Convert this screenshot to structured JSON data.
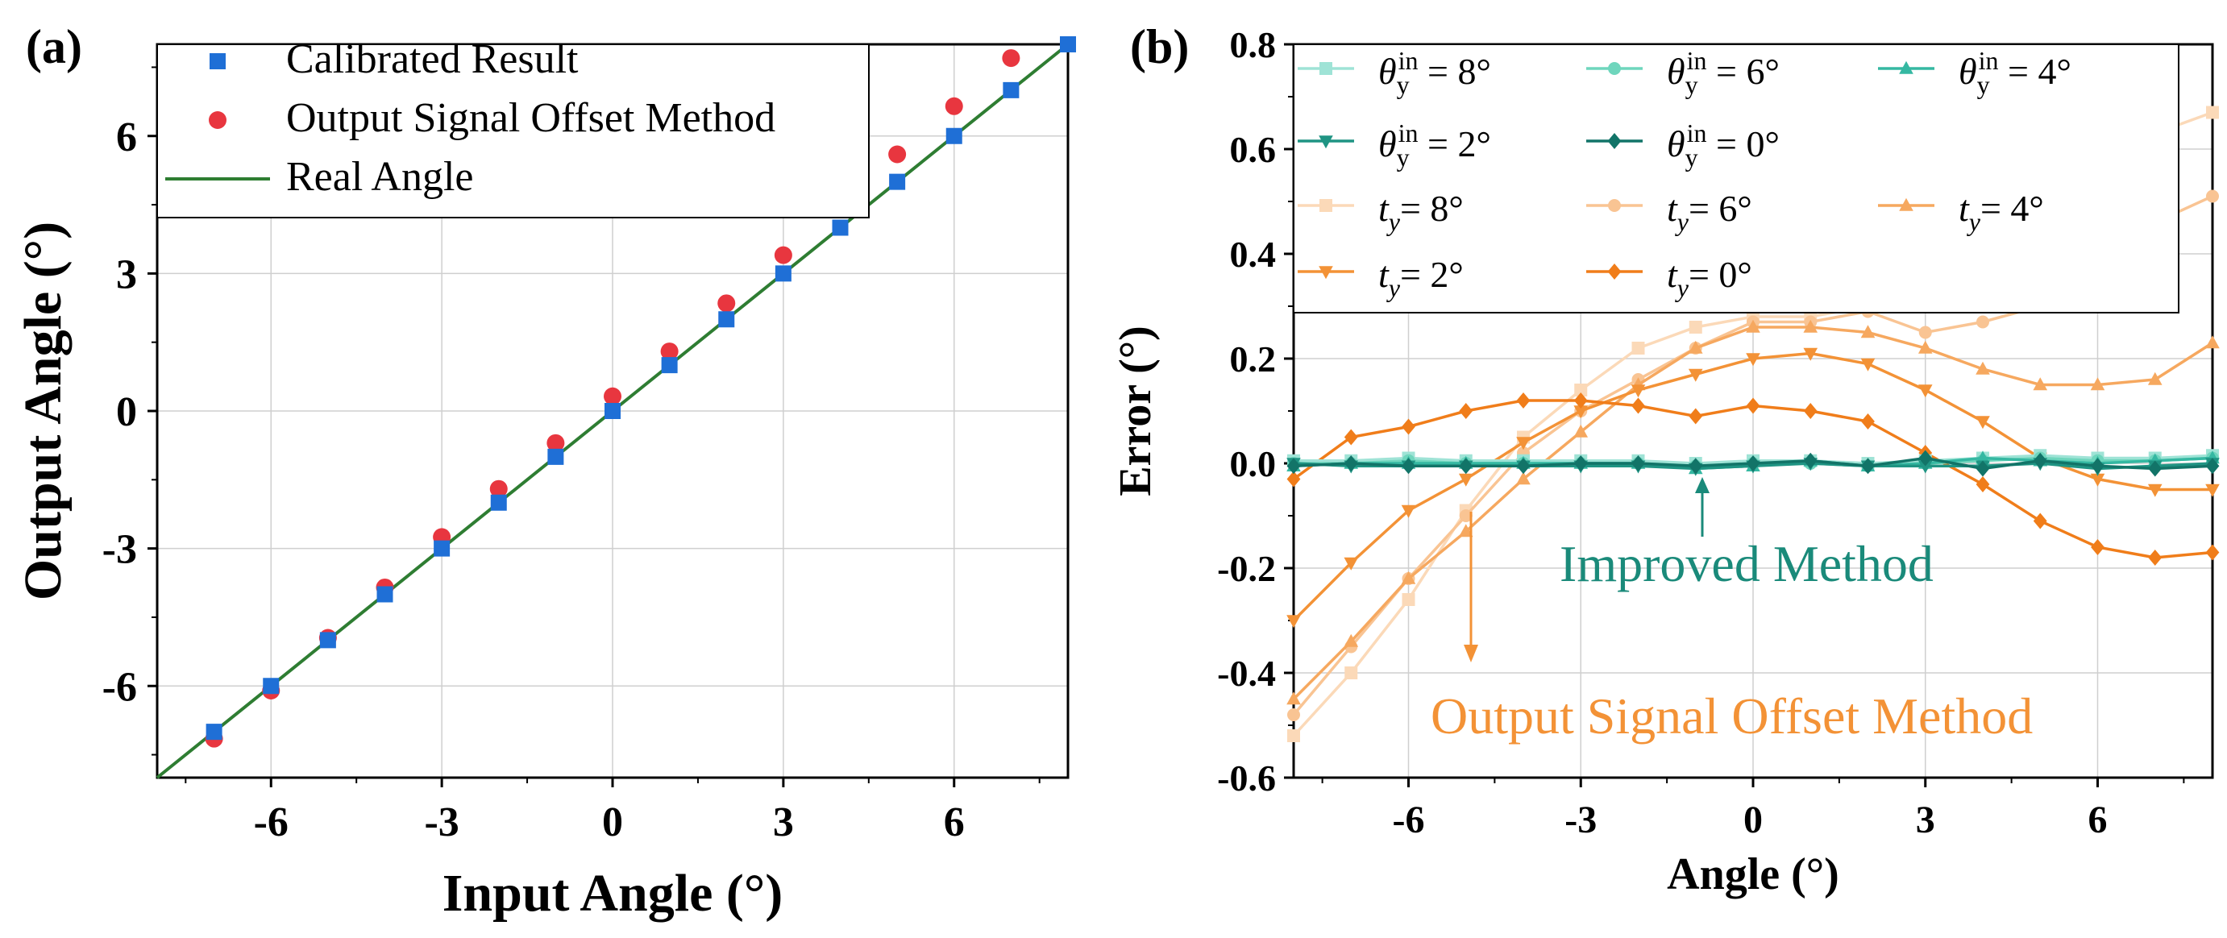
{
  "figure": {
    "panel_a_label": "(a)",
    "panel_b_label": "(b)"
  },
  "chart_data": [
    {
      "type": "scatter",
      "panel": "(a)",
      "xlabel": "Input Angle (°)",
      "ylabel": "Output Angle (°)",
      "xlim": [
        -8,
        8
      ],
      "ylim": [
        -8,
        8
      ],
      "xticks": [
        -6,
        -3,
        0,
        3,
        6
      ],
      "yticks": [
        -6,
        -3,
        0,
        3,
        6
      ],
      "grid": true,
      "legend_position": "top-left",
      "series": [
        {
          "name": "Calibrated Result",
          "marker": "square",
          "color": "#1f6fd6",
          "x": [
            -7,
            -6,
            -5,
            -4,
            -3,
            -2,
            -1,
            0,
            1,
            2,
            3,
            4,
            5,
            6,
            7,
            8
          ],
          "y": [
            -7,
            -6,
            -5,
            -4,
            -3,
            -2,
            -1,
            0,
            1,
            2,
            3,
            4,
            5,
            6,
            7,
            8
          ]
        },
        {
          "name": "Output Signal Offset Method",
          "marker": "circle",
          "color": "#e8363f",
          "x": [
            -7,
            -6,
            -5,
            -4,
            -3,
            -2,
            -1,
            0,
            1,
            2,
            3,
            4,
            5,
            6,
            7
          ],
          "y": [
            -7.15,
            -6.1,
            -4.95,
            -3.85,
            -2.75,
            -1.7,
            -0.7,
            0.32,
            1.3,
            2.35,
            3.4,
            4.5,
            5.6,
            6.65,
            7.7
          ]
        },
        {
          "name": "Real Angle",
          "marker": "line",
          "color": "#2e7d32",
          "x": [
            -8,
            8
          ],
          "y": [
            -8,
            8
          ]
        }
      ]
    },
    {
      "type": "line",
      "panel": "(b)",
      "xlabel": "Angle (°)",
      "ylabel": "Error (°)",
      "xlim": [
        -8,
        8
      ],
      "ylim": [
        -0.6,
        0.8
      ],
      "xticks": [
        -6,
        -3,
        0,
        3,
        6
      ],
      "yticks": [
        "-0.6",
        "-0.4",
        "-0.2",
        "0.0",
        "0.2",
        "0.4",
        "0.6",
        "0.8"
      ],
      "grid": true,
      "legend_position": "top-left",
      "x": [
        -8,
        -7,
        -6,
        -5,
        -4,
        -3,
        -2,
        -1,
        0,
        1,
        2,
        3,
        4,
        5,
        6,
        7,
        8
      ],
      "series": [
        {
          "name": "θy in = 8°",
          "prefix": "θ",
          "sub": "y",
          "sup": "in",
          "eq": " = 8°",
          "marker": "square",
          "color": "#9fe3d6",
          "values": [
            0.005,
            0.005,
            0.01,
            0.005,
            0.005,
            0.005,
            0.005,
            0.0,
            0.005,
            0.005,
            0.0,
            0.005,
            0.01,
            0.015,
            0.01,
            0.01,
            0.015
          ]
        },
        {
          "name": "θy in = 6°",
          "prefix": "θ",
          "sub": "y",
          "sup": "in",
          "eq": " = 6°",
          "marker": "circle",
          "color": "#6fd6bd",
          "values": [
            0.0,
            0.0,
            0.005,
            0.0,
            0.0,
            0.0,
            0.0,
            -0.005,
            0.0,
            0.0,
            -0.005,
            0.0,
            0.005,
            0.01,
            0.005,
            0.005,
            0.01
          ]
        },
        {
          "name": "θy in = 4°",
          "prefix": "θ",
          "sub": "y",
          "sup": "in",
          "eq": " = 4°",
          "marker": "triangle-up",
          "color": "#35b8a2",
          "values": [
            -0.005,
            0.0,
            0.0,
            0.0,
            0.0,
            0.0,
            0.0,
            -0.01,
            -0.005,
            0.005,
            -0.005,
            0.0,
            0.01,
            0.005,
            0.0,
            0.005,
            0.01
          ]
        },
        {
          "name": "θy in = 2°",
          "prefix": "θ",
          "sub": "y",
          "sup": "in",
          "eq": " = 2°",
          "marker": "triangle-down",
          "color": "#1f9483",
          "values": [
            0.0,
            -0.005,
            -0.005,
            -0.005,
            -0.005,
            -0.005,
            -0.005,
            -0.01,
            -0.005,
            0.0,
            -0.005,
            -0.005,
            -0.005,
            0.0,
            -0.01,
            -0.005,
            0.0
          ]
        },
        {
          "name": "θy in = 0°",
          "prefix": "θ",
          "sub": "y",
          "sup": "in",
          "eq": " = 0°",
          "marker": "diamond",
          "color": "#127468",
          "values": [
            -0.005,
            0.0,
            -0.005,
            -0.005,
            -0.005,
            0.0,
            0.0,
            -0.005,
            0.0,
            0.005,
            -0.005,
            0.01,
            -0.01,
            0.005,
            -0.005,
            -0.01,
            -0.005
          ]
        },
        {
          "name": "ty = 8°",
          "prefix": "t",
          "sub": "y",
          "sup": "",
          "eq": "= 8°",
          "marker": "square",
          "color": "#fbd9b8",
          "values": [
            -0.52,
            -0.4,
            -0.26,
            -0.09,
            0.05,
            0.14,
            0.22,
            0.26,
            0.28,
            0.28,
            0.3,
            0.33,
            0.39,
            0.46,
            0.56,
            0.63,
            0.67
          ]
        },
        {
          "name": "ty = 6°",
          "prefix": "t",
          "sub": "y",
          "sup": "",
          "eq": "= 6°",
          "marker": "circle",
          "color": "#f9c493",
          "values": [
            -0.48,
            -0.35,
            -0.22,
            -0.1,
            0.02,
            0.1,
            0.16,
            0.22,
            0.27,
            0.27,
            0.29,
            0.25,
            0.27,
            0.3,
            0.39,
            0.46,
            0.51
          ]
        },
        {
          "name": "ty = 4°",
          "prefix": "t",
          "sub": "y",
          "sup": "",
          "eq": "= 4°",
          "marker": "triangle-up",
          "color": "#f6a85f",
          "values": [
            -0.45,
            -0.34,
            -0.22,
            -0.13,
            -0.03,
            0.06,
            0.15,
            0.22,
            0.26,
            0.26,
            0.25,
            0.22,
            0.18,
            0.15,
            0.15,
            0.16,
            0.23
          ]
        },
        {
          "name": "ty = 2°",
          "prefix": "t",
          "sub": "y",
          "sup": "",
          "eq": "= 2°",
          "marker": "triangle-down",
          "color": "#f39236",
          "values": [
            -0.3,
            -0.19,
            -0.09,
            -0.03,
            0.04,
            0.1,
            0.14,
            0.17,
            0.2,
            0.21,
            0.19,
            0.14,
            0.08,
            0.01,
            -0.03,
            -0.05,
            -0.05
          ]
        },
        {
          "name": "ty = 0°",
          "prefix": "t",
          "sub": "y",
          "sup": "",
          "eq": "= 0°",
          "marker": "diamond",
          "color": "#f07d1a",
          "values": [
            -0.03,
            0.05,
            0.07,
            0.1,
            0.12,
            0.12,
            0.11,
            0.09,
            0.11,
            0.1,
            0.08,
            0.02,
            -0.04,
            -0.11,
            -0.16,
            -0.18,
            -0.17
          ]
        }
      ],
      "annotations": [
        {
          "text": "Improved Method",
          "color": "#1a8a7a"
        },
        {
          "text": "Output Signal Offset Method",
          "color": "#f39236"
        }
      ]
    }
  ]
}
